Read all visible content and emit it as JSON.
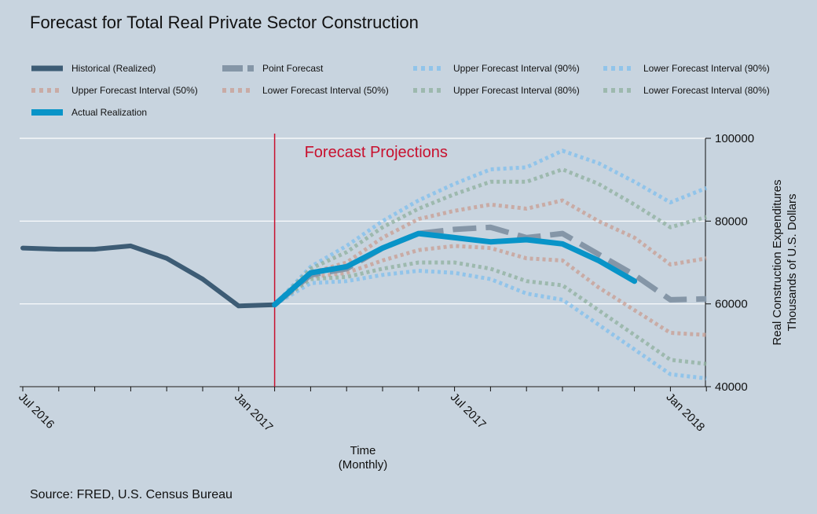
{
  "chart_data": {
    "type": "line",
    "title": "Forecast for Total Real Private Sector Construction",
    "xlabel": [
      "Time",
      "(Monthly)"
    ],
    "ylabel": [
      "Real Construction Expenditures",
      "Thousands of U.S. Dollars"
    ],
    "ylim": [
      40000,
      100000
    ],
    "yticks": [
      40000,
      60000,
      80000,
      100000
    ],
    "ytick_labels": [
      "40000",
      "60000",
      "80000",
      "100000"
    ],
    "xlim": [
      "2016-07",
      "2018-02"
    ],
    "xticks": [
      "2016-07",
      "2016-08",
      "2016-09",
      "2016-10",
      "2016-11",
      "2016-12",
      "2017-01",
      "2017-02",
      "2017-03",
      "2017-04",
      "2017-05",
      "2017-06",
      "2017-07",
      "2017-08",
      "2017-09",
      "2017-10",
      "2017-11",
      "2017-12",
      "2018-01",
      "2018-02"
    ],
    "xtick_labels": [
      {
        "x": "2016-07",
        "label": "Jul 2016"
      },
      {
        "x": "2017-01",
        "label": "Jan 2017"
      },
      {
        "x": "2017-07",
        "label": "Jul 2017"
      },
      {
        "x": "2018-01",
        "label": "Jan 2018"
      }
    ],
    "grid": "horizontal",
    "y_axis_side": "right",
    "legend_position": "top",
    "source": "Source: FRED, U.S. Census Bureau",
    "annotation": {
      "text": "Forecast Projections",
      "x": "2017-02",
      "color": "#c8102e"
    },
    "series": [
      {
        "name": "Historical (Realized)",
        "color": "#3d5c75",
        "style": "solid",
        "x": [
          "2016-07",
          "2016-08",
          "2016-09",
          "2016-10",
          "2016-11",
          "2016-12",
          "2017-01",
          "2017-02"
        ],
        "y": [
          73500,
          73200,
          73200,
          74000,
          71000,
          66000,
          59500,
          59800
        ]
      },
      {
        "name": "Point Forecast",
        "color": "#8596a7",
        "style": "dash",
        "x": [
          "2017-02",
          "2017-03",
          "2017-04",
          "2017-05",
          "2017-06",
          "2017-07",
          "2017-08",
          "2017-09",
          "2017-10",
          "2017-11",
          "2017-12",
          "2018-01",
          "2018-02"
        ],
        "y": [
          59800,
          67000,
          68500,
          73500,
          77000,
          78000,
          78500,
          76000,
          77000,
          72000,
          67000,
          61000,
          61200
        ]
      },
      {
        "name": "Upper Forecast Interval (90%)",
        "color": "#7fbfed",
        "style": "dot",
        "x": [
          "2017-02",
          "2017-03",
          "2017-04",
          "2017-05",
          "2017-06",
          "2017-07",
          "2017-08",
          "2017-09",
          "2017-10",
          "2017-11",
          "2017-12",
          "2018-01",
          "2018-02"
        ],
        "y": [
          59800,
          69000,
          74000,
          80000,
          85000,
          89000,
          92500,
          93000,
          97000,
          94000,
          89500,
          84500,
          88000
        ]
      },
      {
        "name": "Lower Forecast Interval (90%)",
        "color": "#7fbfed",
        "style": "dot",
        "x": [
          "2017-02",
          "2017-03",
          "2017-04",
          "2017-05",
          "2017-06",
          "2017-07",
          "2017-08",
          "2017-09",
          "2017-10",
          "2017-11",
          "2017-12",
          "2018-01",
          "2018-02"
        ],
        "y": [
          59800,
          65000,
          65500,
          67000,
          68000,
          67500,
          66000,
          62500,
          61000,
          55000,
          49000,
          43000,
          42000
        ]
      },
      {
        "name": "Upper Forecast Interval (50%)",
        "color": "#c99e92",
        "style": "dot",
        "x": [
          "2017-02",
          "2017-03",
          "2017-04",
          "2017-05",
          "2017-06",
          "2017-07",
          "2017-08",
          "2017-09",
          "2017-10",
          "2017-11",
          "2017-12",
          "2018-01",
          "2018-02"
        ],
        "y": [
          59800,
          67500,
          70000,
          76000,
          80500,
          82500,
          84000,
          83000,
          85000,
          80000,
          76000,
          69500,
          71000
        ]
      },
      {
        "name": "Lower Forecast Interval (50%)",
        "color": "#c99e92",
        "style": "dot",
        "x": [
          "2017-02",
          "2017-03",
          "2017-04",
          "2017-05",
          "2017-06",
          "2017-07",
          "2017-08",
          "2017-09",
          "2017-10",
          "2017-11",
          "2017-12",
          "2018-01",
          "2018-02"
        ],
        "y": [
          59800,
          66500,
          67500,
          70500,
          73000,
          74000,
          73500,
          71000,
          70500,
          64000,
          58500,
          53000,
          52500
        ]
      },
      {
        "name": "Upper Forecast Interval (80%)",
        "color": "#8fb09d",
        "style": "dot",
        "x": [
          "2017-02",
          "2017-03",
          "2017-04",
          "2017-05",
          "2017-06",
          "2017-07",
          "2017-08",
          "2017-09",
          "2017-10",
          "2017-11",
          "2017-12",
          "2018-01",
          "2018-02"
        ],
        "y": [
          59800,
          68500,
          72500,
          78500,
          83000,
          86500,
          89500,
          89500,
          92500,
          89000,
          84000,
          78500,
          81000
        ]
      },
      {
        "name": "Lower Forecast Interval (80%)",
        "color": "#8fb09d",
        "style": "dot",
        "x": [
          "2017-02",
          "2017-03",
          "2017-04",
          "2017-05",
          "2017-06",
          "2017-07",
          "2017-08",
          "2017-09",
          "2017-10",
          "2017-11",
          "2017-12",
          "2018-01",
          "2018-02"
        ],
        "y": [
          59800,
          66000,
          66500,
          68500,
          70000,
          70000,
          68500,
          65500,
          64500,
          58500,
          52500,
          46500,
          45500
        ]
      },
      {
        "name": "Actual Realization",
        "color": "#0894c8",
        "style": "solid",
        "x": [
          "2017-02",
          "2017-03",
          "2017-04",
          "2017-05",
          "2017-06",
          "2017-07",
          "2017-08",
          "2017-09",
          "2017-10",
          "2017-11",
          "2017-12"
        ],
        "y": [
          59800,
          67500,
          69000,
          73500,
          77000,
          76000,
          75000,
          75500,
          74500,
          70500,
          65500
        ]
      }
    ]
  }
}
